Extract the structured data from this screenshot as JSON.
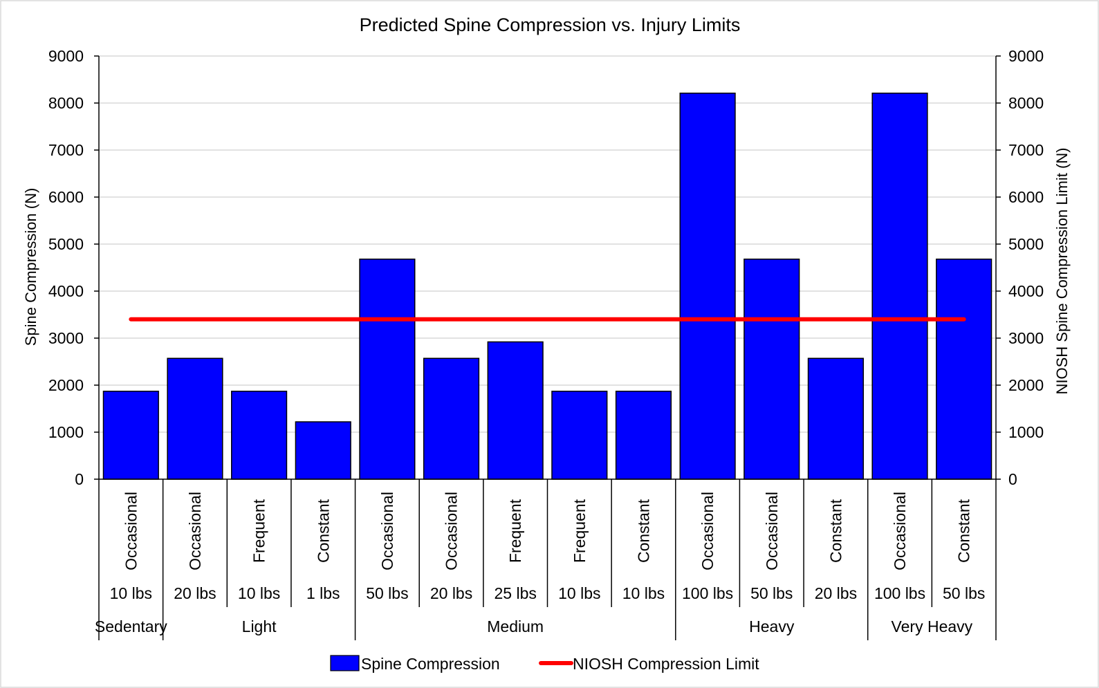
{
  "chart_data": {
    "type": "bar",
    "title": "Predicted Spine Compression vs. Injury Limits",
    "ylabel": "Spine Compression (N)",
    "y2label": "NIOSH Spine Compression Limit (N)",
    "ylim": [
      0,
      9000
    ],
    "y2lim": [
      0,
      9000
    ],
    "yticks": [
      "0",
      "1000",
      "2000",
      "3000",
      "4000",
      "5000",
      "6000",
      "7000",
      "8000",
      "9000"
    ],
    "y2ticks": [
      "0",
      "1000",
      "2000",
      "3000",
      "4000",
      "5000",
      "6000",
      "7000",
      "8000",
      "9000"
    ],
    "grid": true,
    "categories": [
      {
        "frequency": "Occasional",
        "load": "10 lbs"
      },
      {
        "frequency": "Occasional",
        "load": "20 lbs"
      },
      {
        "frequency": "Frequent",
        "load": "10 lbs"
      },
      {
        "frequency": "Constant",
        "load": "1 lbs"
      },
      {
        "frequency": "Occasional",
        "load": "50 lbs"
      },
      {
        "frequency": "Occasional",
        "load": "20 lbs"
      },
      {
        "frequency": "Frequent",
        "load": "25 lbs"
      },
      {
        "frequency": "Frequent",
        "load": "10 lbs"
      },
      {
        "frequency": "Constant",
        "load": "10 lbs"
      },
      {
        "frequency": "Occasional",
        "load": "100 lbs"
      },
      {
        "frequency": "Occasional",
        "load": "50 lbs"
      },
      {
        "frequency": "Constant",
        "load": "20 lbs"
      },
      {
        "frequency": "Occasional",
        "load": "100 lbs"
      },
      {
        "frequency": "Constant",
        "load": "50 lbs"
      }
    ],
    "groups": [
      {
        "label": "Sedentary",
        "start": 0,
        "end": 0
      },
      {
        "label": "Light",
        "start": 1,
        "end": 3
      },
      {
        "label": "Medium",
        "start": 4,
        "end": 8
      },
      {
        "label": "Heavy",
        "start": 9,
        "end": 11
      },
      {
        "label": "Very Heavy",
        "start": 12,
        "end": 13
      }
    ],
    "series": [
      {
        "name": "Spine Compression",
        "type": "bar",
        "axis": "left",
        "color": "#0000ff",
        "values": [
          1870,
          2570,
          1870,
          1220,
          4680,
          2570,
          2920,
          1870,
          1870,
          8210,
          4680,
          2570,
          8210,
          4680
        ]
      },
      {
        "name": "NIOSH Compression Limit",
        "type": "line",
        "axis": "right",
        "color": "#ff0000",
        "values": [
          3400,
          3400,
          3400,
          3400,
          3400,
          3400,
          3400,
          3400,
          3400,
          3400,
          3400,
          3400,
          3400,
          3400
        ]
      }
    ],
    "legend": "bottom"
  }
}
